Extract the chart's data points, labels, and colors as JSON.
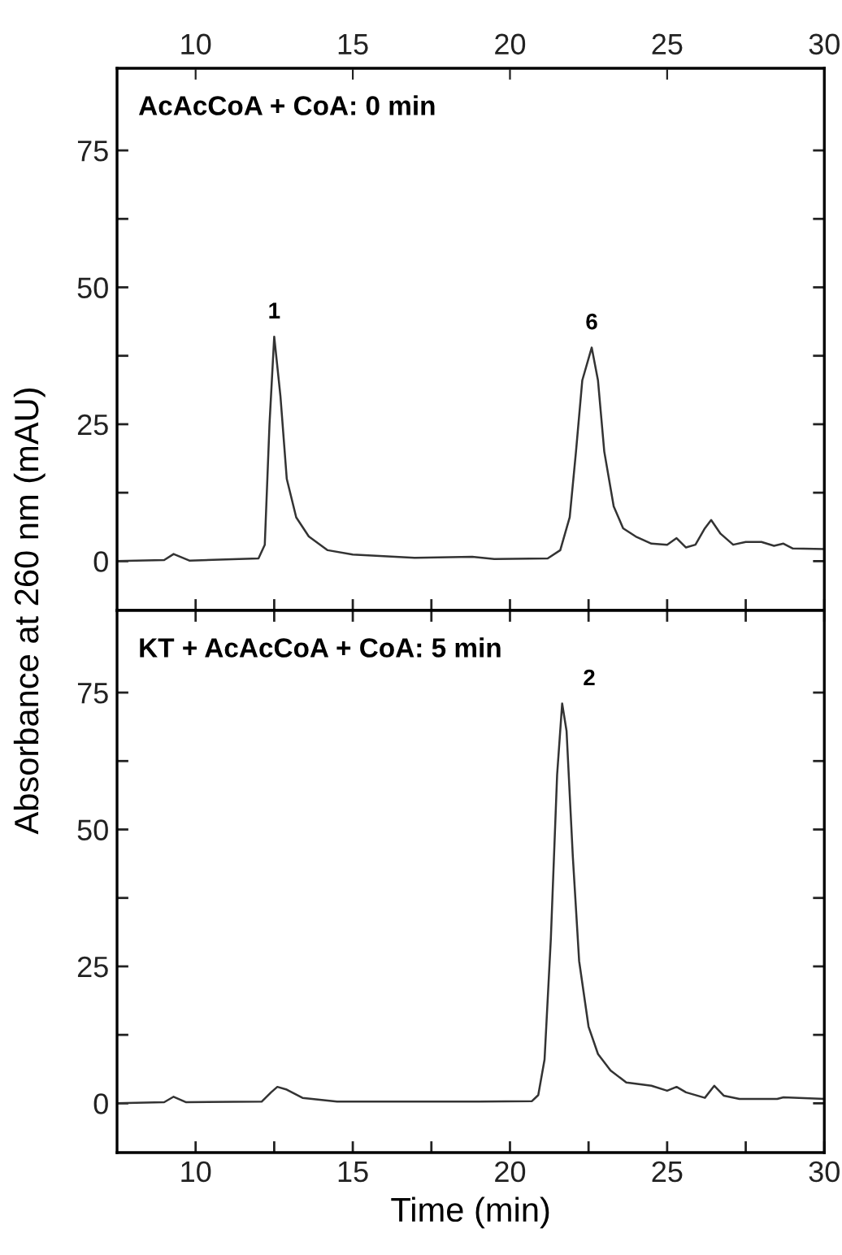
{
  "chart_data": [
    {
      "type": "line",
      "title": "AcAcCoA + CoA: 0 min",
      "ylabel": "Absorbance at 260 nm (mAU)",
      "tick_labels": "y",
      "series": [
        {
          "color": "#333333",
          "x": [
            7.5,
            9.0,
            9.3,
            9.8,
            12.0,
            12.2,
            12.35,
            12.5,
            12.7,
            12.9,
            13.2,
            13.6,
            14.2,
            15,
            17,
            18.8,
            19.5,
            21.2,
            21.6,
            21.9,
            22.1,
            22.3,
            22.6,
            22.8,
            23.0,
            23.3,
            23.6,
            24,
            24.5,
            25,
            25.3,
            25.6,
            25.9,
            26.2,
            26.4,
            26.7,
            27.1,
            27.5,
            28,
            28.4,
            28.7,
            29,
            30
          ],
          "values": [
            0,
            0.2,
            1.3,
            0.1,
            0.5,
            3,
            25,
            41,
            30,
            15,
            8,
            4.5,
            2,
            1.2,
            0.6,
            0.8,
            0.4,
            0.5,
            2,
            8,
            20,
            33,
            39,
            33,
            20,
            10,
            6,
            4.5,
            3.2,
            3,
            4.2,
            2.5,
            3,
            6,
            7.5,
            5,
            3,
            3.5,
            3.5,
            2.8,
            3.2,
            2.3,
            2.2
          ]
        }
      ],
      "annotations": [
        {
          "text": "1",
          "x": 12.5,
          "y": 41
        },
        {
          "text": "6",
          "x": 22.6,
          "y": 39
        }
      ],
      "xlim": [
        7.5,
        30
      ],
      "xticks": [
        {
          "value": 10,
          "label": null
        },
        {
          "value": 12.5,
          "label": null
        },
        {
          "value": 15,
          "label": null
        },
        {
          "value": 17.5,
          "label": null
        },
        {
          "value": 20,
          "label": null
        },
        {
          "value": 22.5,
          "label": null
        },
        {
          "value": 25,
          "label": null
        },
        {
          "value": 27.5,
          "label": null
        },
        {
          "value": 30,
          "label": null
        }
      ],
      "x2lim": [
        7.5,
        30
      ],
      "x2ticks": [
        10,
        15,
        20,
        25,
        30
      ],
      "ylim": [
        -9,
        90
      ],
      "yticks": [
        0,
        {
          "value": 12.5,
          "label": null
        },
        25,
        {
          "value": 37.5,
          "label": null
        },
        50,
        {
          "value": 62.5,
          "label": null
        },
        75
      ],
      "grid": false,
      "legend": false,
      "marker": "none",
      "line_style": "solid"
    },
    {
      "type": "line",
      "title": "KT + AcAcCoA + CoA: 5 min",
      "xlabel": "Time (min)",
      "series": [
        {
          "color": "#333333",
          "x": [
            7.5,
            9.0,
            9.3,
            9.7,
            12.1,
            12.4,
            12.6,
            12.9,
            13.4,
            14.5,
            19,
            20.7,
            20.9,
            21.1,
            21.3,
            21.5,
            21.66,
            21.8,
            22.0,
            22.2,
            22.5,
            22.8,
            23.2,
            23.7,
            24.5,
            25.0,
            25.3,
            25.6,
            26.2,
            26.5,
            26.8,
            27.3,
            28.5,
            28.7,
            30
          ],
          "values": [
            0,
            0.2,
            1.2,
            0.2,
            0.3,
            2,
            3,
            2.5,
            1,
            0.3,
            0.3,
            0.4,
            1.5,
            8,
            30,
            60,
            73,
            68,
            45,
            26,
            14,
            9,
            6,
            3.8,
            3.2,
            2.3,
            3,
            2,
            1,
            3.2,
            1.4,
            0.8,
            0.8,
            1.1,
            0.8
          ]
        }
      ],
      "annotations": [
        {
          "text": "2",
          "x": 21.66,
          "y": 73
        }
      ],
      "xlim": [
        7.5,
        30
      ],
      "xticks": [
        10,
        {
          "value": 12.5,
          "label": null
        },
        15,
        {
          "value": 17.5,
          "label": null
        },
        20,
        {
          "value": 22.5,
          "label": null
        },
        25,
        {
          "value": 27.5,
          "label": null
        },
        30
      ],
      "ylim": [
        -9,
        90
      ],
      "yticks": [
        0,
        {
          "value": 12.5,
          "label": null
        },
        25,
        {
          "value": 37.5,
          "label": null
        },
        50,
        {
          "value": 62.5,
          "label": null
        },
        75
      ],
      "grid": false,
      "legend": false,
      "marker": "none",
      "line_style": "solid"
    }
  ]
}
